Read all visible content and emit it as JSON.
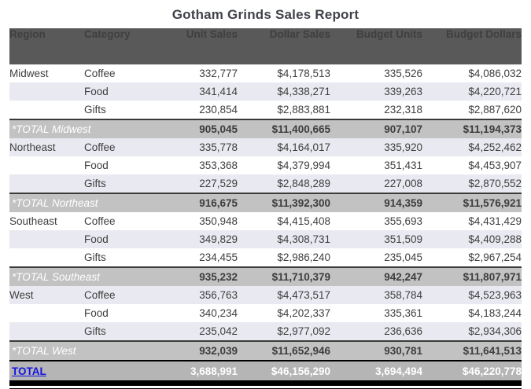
{
  "title": "Gotham Grinds Sales Report",
  "columns": [
    "Region",
    "Category",
    "Unit Sales",
    "Dollar Sales",
    "Budget Units",
    "Budget Dollars"
  ],
  "rows": [
    {
      "type": "data",
      "shade": "white",
      "region": "Midwest",
      "category": "Coffee",
      "unit_sales": "332,777",
      "dollar_sales": "$4,178,513",
      "budget_units": "335,526",
      "budget_dollars": "$4,086,032"
    },
    {
      "type": "data",
      "shade": "stripe",
      "region": "",
      "category": "Food",
      "unit_sales": "341,414",
      "dollar_sales": "$4,338,271",
      "budget_units": "339,263",
      "budget_dollars": "$4,220,721"
    },
    {
      "type": "data",
      "shade": "white",
      "region": "",
      "category": "Gifts",
      "unit_sales": "230,854",
      "dollar_sales": "$2,883,881",
      "budget_units": "232,318",
      "budget_dollars": "$2,887,620"
    },
    {
      "type": "region_total",
      "label": "*TOTAL Midwest",
      "unit_sales": "905,045",
      "dollar_sales": "$11,400,665",
      "budget_units": "907,107",
      "budget_dollars": "$11,194,373"
    },
    {
      "type": "data",
      "shade": "stripe",
      "region": "Northeast",
      "category": "Coffee",
      "unit_sales": "335,778",
      "dollar_sales": "$4,164,017",
      "budget_units": "335,920",
      "budget_dollars": "$4,252,462"
    },
    {
      "type": "data",
      "shade": "white",
      "region": "",
      "category": "Food",
      "unit_sales": "353,368",
      "dollar_sales": "$4,379,994",
      "budget_units": "351,431",
      "budget_dollars": "$4,453,907"
    },
    {
      "type": "data",
      "shade": "stripe",
      "region": "",
      "category": "Gifts",
      "unit_sales": "227,529",
      "dollar_sales": "$2,848,289",
      "budget_units": "227,008",
      "budget_dollars": "$2,870,552"
    },
    {
      "type": "region_total",
      "label": "*TOTAL Northeast",
      "unit_sales": "916,675",
      "dollar_sales": "$11,392,300",
      "budget_units": "914,359",
      "budget_dollars": "$11,576,921"
    },
    {
      "type": "data",
      "shade": "white",
      "region": "Southeast",
      "category": "Coffee",
      "unit_sales": "350,948",
      "dollar_sales": "$4,415,408",
      "budget_units": "355,693",
      "budget_dollars": "$4,431,429"
    },
    {
      "type": "data",
      "shade": "stripe",
      "region": "",
      "category": "Food",
      "unit_sales": "349,829",
      "dollar_sales": "$4,308,731",
      "budget_units": "351,509",
      "budget_dollars": "$4,409,288"
    },
    {
      "type": "data",
      "shade": "white",
      "region": "",
      "category": "Gifts",
      "unit_sales": "234,455",
      "dollar_sales": "$2,986,240",
      "budget_units": "235,045",
      "budget_dollars": "$2,967,254"
    },
    {
      "type": "region_total",
      "label": "*TOTAL Southeast",
      "unit_sales": "935,232",
      "dollar_sales": "$11,710,379",
      "budget_units": "942,247",
      "budget_dollars": "$11,807,971"
    },
    {
      "type": "data",
      "shade": "stripe",
      "region": "West",
      "category": "Coffee",
      "unit_sales": "356,763",
      "dollar_sales": "$4,473,517",
      "budget_units": "358,784",
      "budget_dollars": "$4,523,963"
    },
    {
      "type": "data",
      "shade": "white",
      "region": "",
      "category": "Food",
      "unit_sales": "340,234",
      "dollar_sales": "$4,202,337",
      "budget_units": "335,361",
      "budget_dollars": "$4,183,244"
    },
    {
      "type": "data",
      "shade": "stripe",
      "region": "",
      "category": "Gifts",
      "unit_sales": "235,042",
      "dollar_sales": "$2,977,092",
      "budget_units": "236,636",
      "budget_dollars": "$2,934,306"
    },
    {
      "type": "region_total",
      "label": "*TOTAL West",
      "unit_sales": "932,039",
      "dollar_sales": "$11,652,946",
      "budget_units": "930,781",
      "budget_dollars": "$11,641,513"
    },
    {
      "type": "grand_total",
      "label": "TOTAL",
      "unit_sales": "3,688,991",
      "dollar_sales": "$46,156,290",
      "budget_units": "3,694,494",
      "budget_dollars": "$46,220,778"
    }
  ],
  "colors": {
    "header_bg": "#595959",
    "header_text": "#ffffff",
    "stripe_bg": "#e9e9f1",
    "total_row_bg": "#c2c2c2",
    "grand_total_bg": "#b5b5b5",
    "link_color": "#1414e0",
    "body_text": "#3f3f3f",
    "bottom_bar": "#000000"
  }
}
